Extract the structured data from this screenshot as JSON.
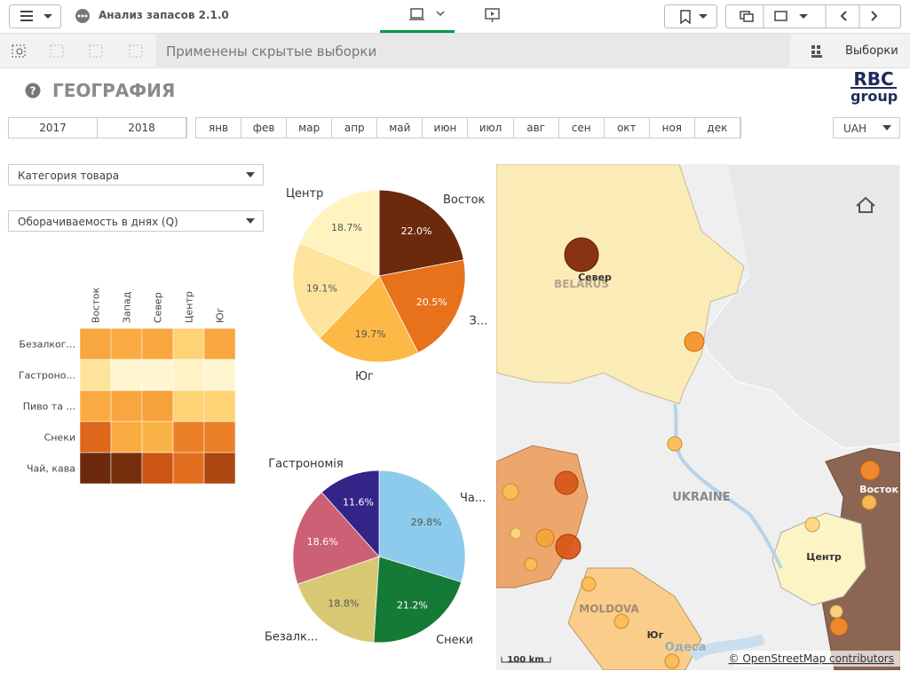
{
  "toolbar": {
    "app_title": "Анализ запасов 2.1.0",
    "selections_note": "Применены скрытые выборки",
    "selections_button": "Выборки"
  },
  "sheet": {
    "title": "ГЕОГРАФИЯ",
    "logo": [
      "RBC",
      "group"
    ]
  },
  "filters": {
    "years": [
      "2017",
      "2018"
    ],
    "months": [
      "янв",
      "фев",
      "мар",
      "апр",
      "май",
      "июн",
      "июл",
      "авг",
      "сен",
      "окт",
      "ноя",
      "дек"
    ],
    "currency": "UAH",
    "dropdowns": [
      "Категория товара",
      "Оборачиваемость в днях (Q)"
    ]
  },
  "chart_data": [
    {
      "type": "heatmap",
      "x_categories": [
        "Восток",
        "Запад",
        "Север",
        "Центр",
        "Юг"
      ],
      "y_categories": [
        "Безалког...",
        "Гастроно...",
        "Пиво та ...",
        "Снеки",
        "Чай, кава"
      ],
      "values": [
        [
          50,
          48,
          50,
          30,
          50
        ],
        [
          20,
          5,
          5,
          8,
          5
        ],
        [
          48,
          50,
          52,
          30,
          30
        ],
        [
          75,
          48,
          45,
          65,
          65
        ],
        [
          100,
          98,
          82,
          72,
          88
        ]
      ],
      "vlim": [
        0,
        100
      ],
      "color_scale": [
        "#fffbe3",
        "#fee49a",
        "#fdc050",
        "#f28c2c",
        "#d65a14",
        "#6b2a0c"
      ]
    },
    {
      "type": "pie",
      "categories": [
        "Восток",
        "З...",
        "Юг",
        null,
        "Центр"
      ],
      "values": [
        22.0,
        20.5,
        19.7,
        19.1,
        18.7
      ],
      "value_labels": [
        "22.0%",
        "20.5%",
        "19.7%",
        "19.1%",
        "18.7%"
      ],
      "colors": [
        "#6b2a0c",
        "#e8711b",
        "#fcb946",
        "#fee39c",
        "#fff4c0"
      ]
    },
    {
      "type": "pie",
      "categories": [
        "Ча...",
        "Снеки",
        "Безалк...",
        null,
        "Гастрономія"
      ],
      "values": [
        29.8,
        21.2,
        18.8,
        18.6,
        11.6
      ],
      "value_labels": [
        "29.8%",
        "21.2%",
        "18.8%",
        "18.6%",
        "11.6%"
      ],
      "colors": [
        "#8ccbeb",
        "#167a37",
        "#d8c874",
        "#cc6176",
        "#332487"
      ]
    }
  ],
  "map": {
    "labels": [
      "BELARUS",
      "UKRAINE",
      "MOLDOVA",
      "Север",
      "Восток",
      "Центр",
      "Юг",
      "Одеса"
    ],
    "scale": "100 km",
    "attribution": "© OpenStreetMap contributors"
  }
}
